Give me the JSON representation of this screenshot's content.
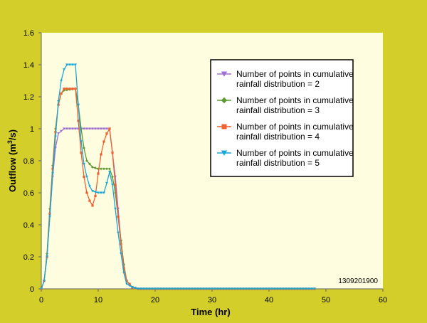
{
  "chart_data": {
    "type": "line",
    "xlabel": "Time (hr)",
    "ylabel_main": "Outflow (m",
    "ylabel_sup": "3",
    "ylabel_tail": "/s)",
    "xlim": [
      0,
      60
    ],
    "ylim": [
      0,
      1.6
    ],
    "xticks": [
      0,
      10,
      20,
      30,
      40,
      50,
      60
    ],
    "yticks": [
      0,
      0.2,
      0.4,
      0.6,
      0.8,
      1,
      1.2,
      1.4,
      1.6
    ],
    "ytick_labels": [
      "0",
      "0.2",
      "0.4",
      "0.6",
      "0.8",
      "1",
      "1.2",
      "1.4",
      "1.6"
    ],
    "grid": false,
    "legend_position": "upper-right",
    "annotation": "1309201900",
    "colors": {
      "background": "#d4ce2a",
      "plot_area": "#fefde0",
      "axis": "#666666"
    },
    "series": [
      {
        "name_line1": "Number of points in cumulative",
        "name_line2": "rainfall distribution = 2",
        "color": "#a070d0",
        "marker": "triangle-down",
        "keypoints": [
          [
            0,
            0
          ],
          [
            0.5,
            0.05
          ],
          [
            1,
            0.2
          ],
          [
            1.5,
            0.45
          ],
          [
            2,
            0.7
          ],
          [
            2.5,
            0.88
          ],
          [
            3,
            0.97
          ],
          [
            4,
            1.0
          ],
          [
            12,
            1.0
          ],
          [
            12.5,
            0.85
          ],
          [
            13,
            0.7
          ],
          [
            13.5,
            0.5
          ],
          [
            14,
            0.3
          ],
          [
            14.5,
            0.15
          ],
          [
            15,
            0.05
          ],
          [
            16,
            0.01
          ],
          [
            17,
            0
          ],
          [
            48,
            0
          ]
        ]
      },
      {
        "name_line1": "Number of points in cumulative",
        "name_line2": "rainfall distribution = 3",
        "color": "#5c9a32",
        "marker": "diamond",
        "keypoints": [
          [
            0,
            0
          ],
          [
            0.5,
            0.05
          ],
          [
            1,
            0.22
          ],
          [
            1.5,
            0.5
          ],
          [
            2,
            0.77
          ],
          [
            2.5,
            1.0
          ],
          [
            3,
            1.15
          ],
          [
            3.5,
            1.22
          ],
          [
            4,
            1.24
          ],
          [
            6,
            1.25
          ],
          [
            6.5,
            1.15
          ],
          [
            7,
            1.0
          ],
          [
            7.5,
            0.88
          ],
          [
            8,
            0.8
          ],
          [
            9,
            0.76
          ],
          [
            10,
            0.75
          ],
          [
            12,
            0.75
          ],
          [
            12.5,
            0.7
          ],
          [
            13,
            0.6
          ],
          [
            13.5,
            0.45
          ],
          [
            14,
            0.3
          ],
          [
            14.5,
            0.15
          ],
          [
            15,
            0.05
          ],
          [
            16,
            0.01
          ],
          [
            17,
            0
          ],
          [
            48,
            0
          ]
        ]
      },
      {
        "name_line1": "Number of points in cumulative",
        "name_line2": "rainfall distribution = 4",
        "color": "#f06030",
        "marker": "square",
        "keypoints": [
          [
            0,
            0
          ],
          [
            0.5,
            0.05
          ],
          [
            1,
            0.2
          ],
          [
            1.5,
            0.47
          ],
          [
            2,
            0.75
          ],
          [
            2.5,
            0.98
          ],
          [
            3,
            1.15
          ],
          [
            3.5,
            1.22
          ],
          [
            4,
            1.25
          ],
          [
            6,
            1.25
          ],
          [
            6.5,
            1.05
          ],
          [
            7,
            0.85
          ],
          [
            7.5,
            0.7
          ],
          [
            8,
            0.6
          ],
          [
            8.5,
            0.55
          ],
          [
            9,
            0.52
          ],
          [
            9.5,
            0.58
          ],
          [
            10,
            0.72
          ],
          [
            10.5,
            0.84
          ],
          [
            11,
            0.92
          ],
          [
            11.5,
            0.97
          ],
          [
            12,
            1.0
          ],
          [
            12.5,
            0.85
          ],
          [
            13,
            0.65
          ],
          [
            13.5,
            0.45
          ],
          [
            14,
            0.28
          ],
          [
            14.5,
            0.13
          ],
          [
            15,
            0.05
          ],
          [
            16,
            0.01
          ],
          [
            17,
            0
          ],
          [
            48,
            0
          ]
        ]
      },
      {
        "name_line1": "Number of points in cumulative",
        "name_line2": "rainfall distribution = 5",
        "color": "#1aa6d6",
        "marker": "triangle-down",
        "keypoints": [
          [
            0,
            0
          ],
          [
            0.5,
            0.05
          ],
          [
            1,
            0.2
          ],
          [
            1.5,
            0.45
          ],
          [
            2,
            0.72
          ],
          [
            2.5,
            0.95
          ],
          [
            3,
            1.17
          ],
          [
            3.5,
            1.3
          ],
          [
            4,
            1.37
          ],
          [
            4.5,
            1.4
          ],
          [
            6,
            1.4
          ],
          [
            6.5,
            1.15
          ],
          [
            7,
            0.92
          ],
          [
            7.5,
            0.78
          ],
          [
            8,
            0.7
          ],
          [
            8.5,
            0.64
          ],
          [
            9,
            0.61
          ],
          [
            10,
            0.6
          ],
          [
            11,
            0.6
          ],
          [
            11.5,
            0.66
          ],
          [
            12,
            0.73
          ],
          [
            12.5,
            0.65
          ],
          [
            13,
            0.5
          ],
          [
            13.5,
            0.35
          ],
          [
            14,
            0.22
          ],
          [
            14.5,
            0.1
          ],
          [
            15,
            0.03
          ],
          [
            16,
            0.01
          ],
          [
            17,
            0
          ],
          [
            48,
            0
          ]
        ]
      }
    ]
  }
}
